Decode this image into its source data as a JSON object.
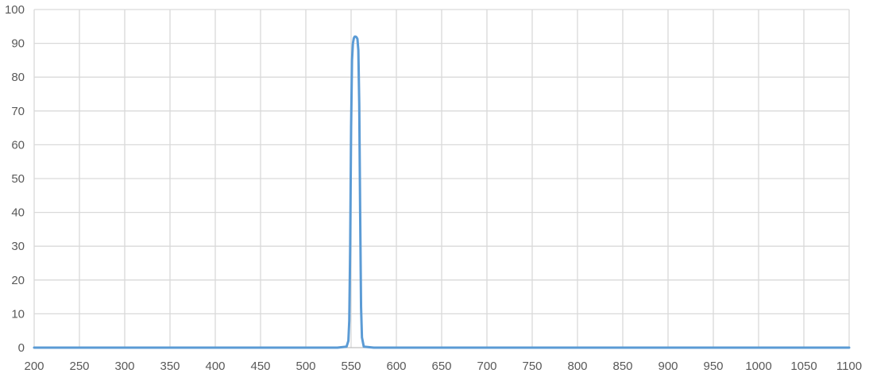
{
  "chart_data": {
    "type": "line",
    "title": "",
    "xlabel": "",
    "ylabel": "",
    "xlim": [
      200,
      1100
    ],
    "ylim": [
      0,
      100
    ],
    "x_ticks": [
      200,
      250,
      300,
      350,
      400,
      450,
      500,
      550,
      600,
      650,
      700,
      750,
      800,
      850,
      900,
      950,
      1000,
      1050,
      1100
    ],
    "y_ticks": [
      0,
      10,
      20,
      30,
      40,
      50,
      60,
      70,
      80,
      90,
      100
    ],
    "grid": true,
    "legend": "none",
    "colors": {
      "series": "#5b9bd5",
      "grid": "#d9d9d9",
      "axis": "#bfbfbf",
      "text": "#595959"
    },
    "series": [
      {
        "x": [
          200,
          535,
          545,
          547,
          548,
          549,
          550,
          551,
          552,
          553,
          554,
          555,
          556,
          557,
          558,
          559,
          560,
          561,
          562,
          564,
          575,
          1100
        ],
        "y": [
          0,
          0,
          0.3,
          2,
          8,
          30,
          65,
          85,
          90,
          91.5,
          92,
          92,
          91.8,
          91.3,
          88,
          72,
          40,
          12,
          3,
          0.3,
          0,
          0
        ]
      }
    ]
  }
}
